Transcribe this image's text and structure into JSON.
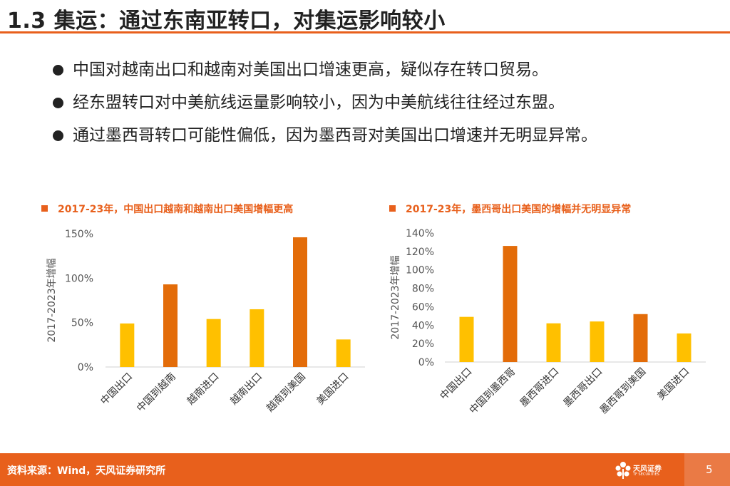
{
  "page": {
    "title": "1.3 集运：通过东南亚转口，对集运影响较小",
    "bullets": [
      "中国对越南出口和越南对美国出口增速更高，疑似存在转口贸易。",
      "经东盟转口对中美航线运量影响较小，因为中美航线往往经过东盟。",
      "通过墨西哥转口可能性偏低，因为墨西哥对美国出口增速并无明显异常。"
    ],
    "source": "资料来源：Wind，天风证券研究所",
    "logo_text": "天风证券",
    "logo_sub": "TF SECURITIES",
    "page_number": "5"
  },
  "colors": {
    "accent": "#e8601c",
    "bar_gold": "#ffc000",
    "bar_orange": "#e36c09"
  },
  "chart_data": [
    {
      "type": "bar",
      "title": "2017-23年，中国出口越南和越南出口美国增幅更高",
      "ylabel": "2017-2023年增幅",
      "xlabel": "",
      "categories": [
        "中国出口",
        "中国到越南",
        "越南进口",
        "越南出口",
        "越南到美国",
        "美国进口"
      ],
      "values": [
        49,
        93,
        54,
        65,
        146,
        31
      ],
      "bar_colors": [
        "#ffc000",
        "#e36c09",
        "#ffc000",
        "#ffc000",
        "#e36c09",
        "#ffc000"
      ],
      "ylim": [
        0,
        150
      ],
      "yticks": [
        0,
        50,
        100,
        150
      ],
      "ytick_labels": [
        "0%",
        "50%",
        "100%",
        "150%"
      ],
      "grid": false
    },
    {
      "type": "bar",
      "title": "2017-23年，墨西哥出口美国的增幅并无明显异常",
      "ylabel": "2017-2023年增幅",
      "xlabel": "",
      "categories": [
        "中国出口",
        "中国到墨西哥",
        "墨西哥进口",
        "墨西哥出口",
        "墨西哥到美国",
        "美国进口"
      ],
      "values": [
        49,
        126,
        42,
        44,
        52,
        31
      ],
      "bar_colors": [
        "#ffc000",
        "#e36c09",
        "#ffc000",
        "#ffc000",
        "#e36c09",
        "#ffc000"
      ],
      "ylim": [
        0,
        140
      ],
      "yticks": [
        0,
        20,
        40,
        60,
        80,
        100,
        120,
        140
      ],
      "ytick_labels": [
        "0%",
        "20%",
        "40%",
        "60%",
        "80%",
        "100%",
        "120%",
        "140%"
      ],
      "grid": false
    }
  ]
}
